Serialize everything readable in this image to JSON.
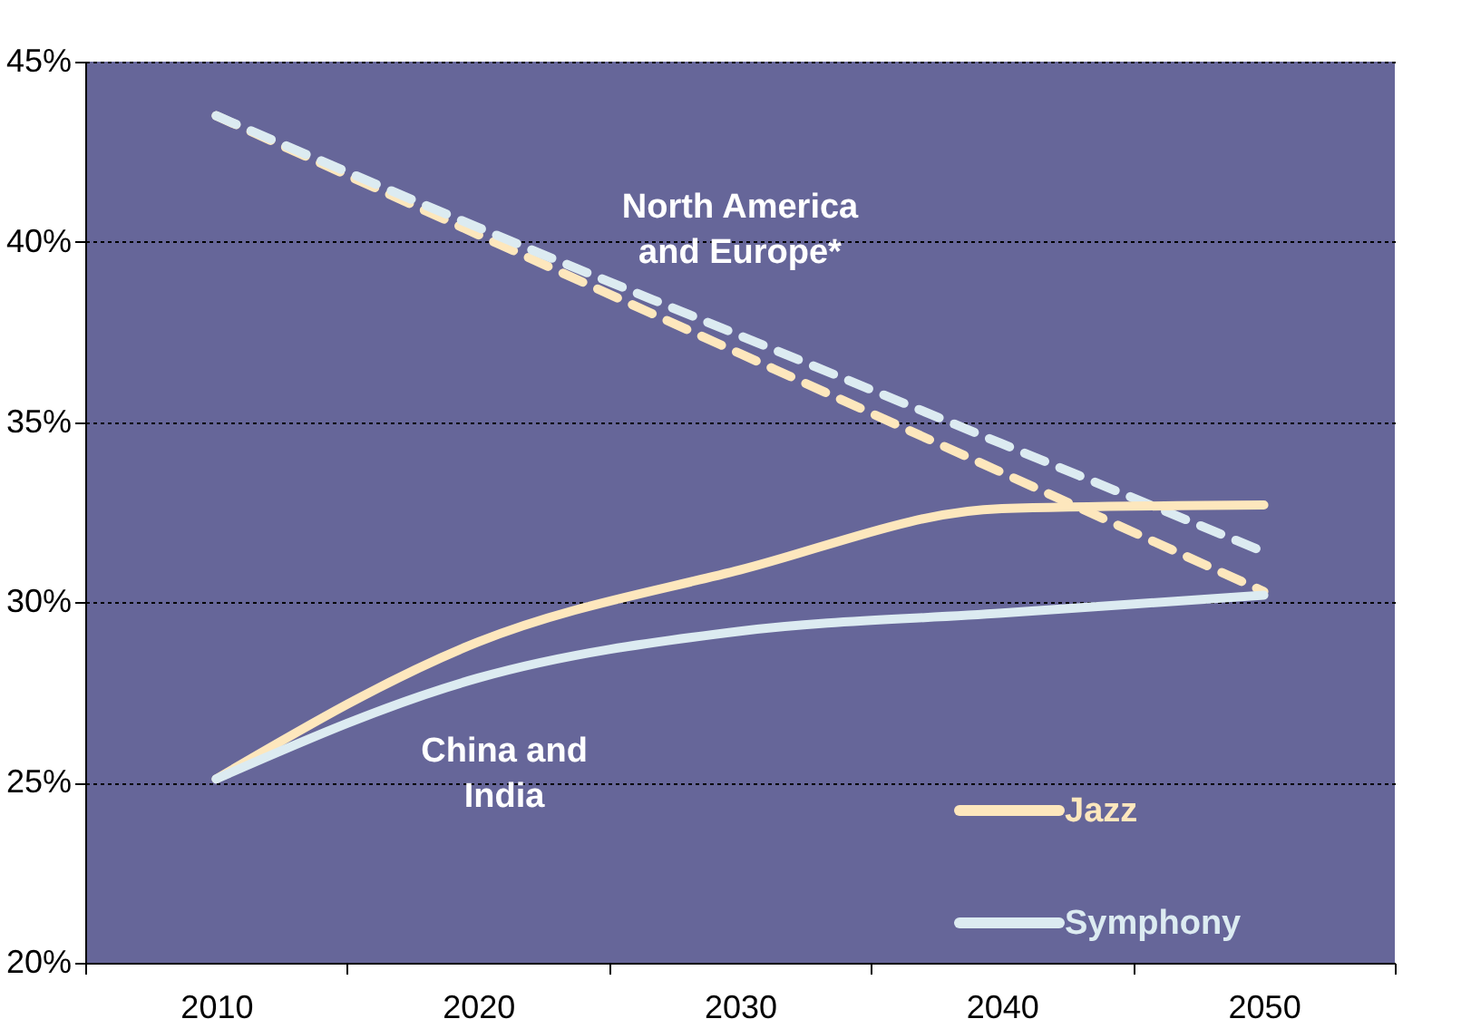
{
  "chart_data": {
    "type": "line",
    "categories": [
      "2010",
      "2020",
      "2030",
      "2040",
      "2050"
    ],
    "series": [
      {
        "color": "#fde7bd",
        "values": [
          43.5,
          40.2,
          36.9,
          33.6,
          30.3
        ],
        "line_style": "dashed"
      },
      {
        "color": "#dcebf1",
        "values": [
          43.5,
          40.4,
          37.4,
          34.4,
          31.4
        ],
        "line_style": "dashed"
      },
      {
        "name": "Jazz",
        "color": "#fde7bd",
        "values": [
          25.1,
          28.9,
          30.9,
          32.6,
          32.7
        ],
        "line_style": "solid"
      },
      {
        "name": "Symphony",
        "color": "#dcebf1",
        "values": [
          25.1,
          27.9,
          29.2,
          29.7,
          30.2
        ],
        "line_style": "solid"
      }
    ],
    "ylim": [
      20,
      45
    ],
    "yticks": [
      {
        "value": 20,
        "label": "20%"
      },
      {
        "value": 25,
        "label": "25%"
      },
      {
        "value": 30,
        "label": "30%"
      },
      {
        "value": 35,
        "label": "35%"
      },
      {
        "value": 40,
        "label": "40%"
      },
      {
        "value": 45,
        "label": "45%"
      }
    ],
    "annotations": [
      "North America\nand Europe*",
      "China and\nIndia"
    ],
    "grid": "y",
    "legend": "bottom right",
    "marker": "none"
  }
}
